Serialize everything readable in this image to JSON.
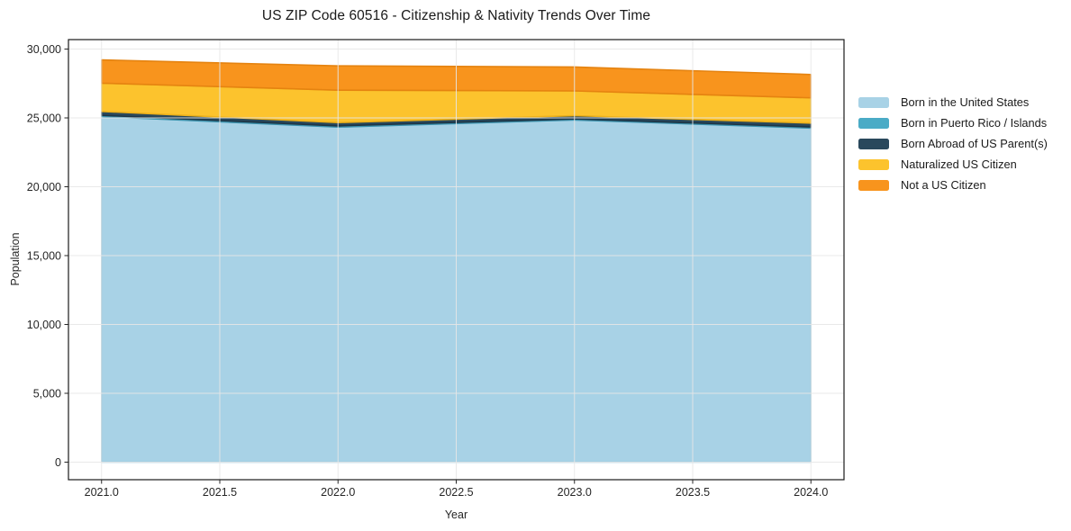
{
  "title": "US ZIP Code 60516 - Citizenship & Nativity Trends Over Time",
  "chart_data": {
    "type": "area",
    "stacked": true,
    "title": "US ZIP Code 60516 - Citizenship & Nativity Trends Over Time",
    "xlabel": "Year",
    "ylabel": "Population",
    "x": [
      2021,
      2022,
      2023,
      2024
    ],
    "series": [
      {
        "name": "Born in the United States",
        "color": "#a8d2e6",
        "edge": "#88bfd9",
        "values": [
          25100,
          24330,
          24850,
          24260
        ]
      },
      {
        "name": "Born in Puerto Rico / Islands",
        "color": "#4aabc6",
        "edge": "#3c93ae",
        "values": [
          90,
          90,
          80,
          80
        ]
      },
      {
        "name": "Born Abroad of US Parent(s)",
        "color": "#29485c",
        "edge": "#1d3647",
        "values": [
          280,
          240,
          230,
          280
        ]
      },
      {
        "name": "Naturalized US Citizen",
        "color": "#fcc32d",
        "edge": "#edb11a",
        "values": [
          2050,
          2350,
          1800,
          1840
        ]
      },
      {
        "name": "Not a US Citizen",
        "color": "#f8941d",
        "edge": "#e58310",
        "values": [
          1690,
          1770,
          1740,
          1690
        ]
      }
    ],
    "xticks": [
      2021.0,
      2021.5,
      2022.0,
      2022.5,
      2023.0,
      2023.5,
      2024.0
    ],
    "xtick_labels": [
      "2021.0",
      "2021.5",
      "2022.0",
      "2022.5",
      "2023.0",
      "2023.5",
      "2024.0"
    ],
    "yticks": [
      0,
      5000,
      10000,
      15000,
      20000,
      25000,
      30000
    ],
    "ytick_labels": [
      "0",
      "5,000",
      "10,000",
      "15,000",
      "20,000",
      "25,000",
      "30,000"
    ],
    "xlim": [
      2020.86,
      2024.14
    ],
    "ylim": [
      -1274,
      30686
    ],
    "grid": true,
    "legend_position": "right",
    "colors": {
      "grid": "#e7e7e7",
      "spine": "#1a1a1a",
      "tick": "#262626",
      "tick_label": "#262626",
      "background": "#ffffff"
    }
  }
}
